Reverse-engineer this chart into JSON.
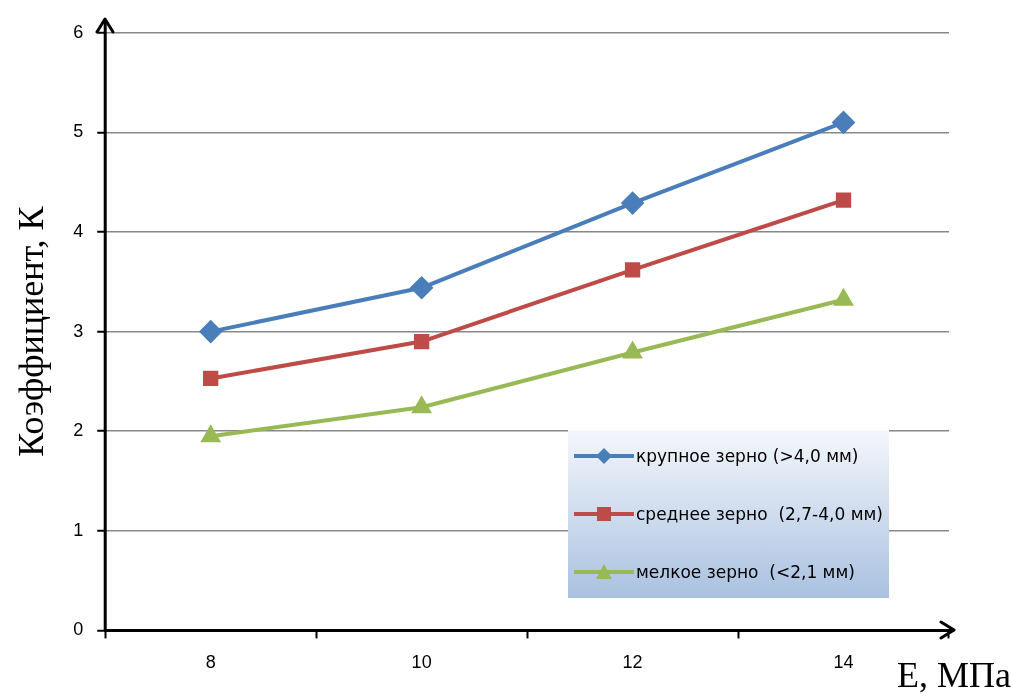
{
  "chart_data": {
    "type": "line",
    "xlabel": "E, МПа",
    "ylabel": "Коэффициент, К",
    "categories": [
      "8",
      "10",
      "12",
      "14"
    ],
    "ylim": [
      0,
      6
    ],
    "yticks": [
      0,
      1,
      2,
      3,
      4,
      5,
      6
    ],
    "grid": "y",
    "legend": "bottom right",
    "series": [
      {
        "name": "крупное зерно (>4,0 мм)",
        "color": "#4a7ebb",
        "marker": "diamond",
        "values": [
          3.0,
          3.44,
          4.29,
          5.1
        ]
      },
      {
        "name": "среднее зерно  (2,7-4,0 мм)",
        "color": "#be4b48",
        "marker": "square",
        "values": [
          2.53,
          2.9,
          3.62,
          4.32
        ]
      },
      {
        "name": "мелкое зерно  (<2,1 мм)",
        "color": "#98b954",
        "marker": "triangle",
        "values": [
          1.95,
          2.24,
          2.79,
          3.32
        ]
      }
    ]
  }
}
